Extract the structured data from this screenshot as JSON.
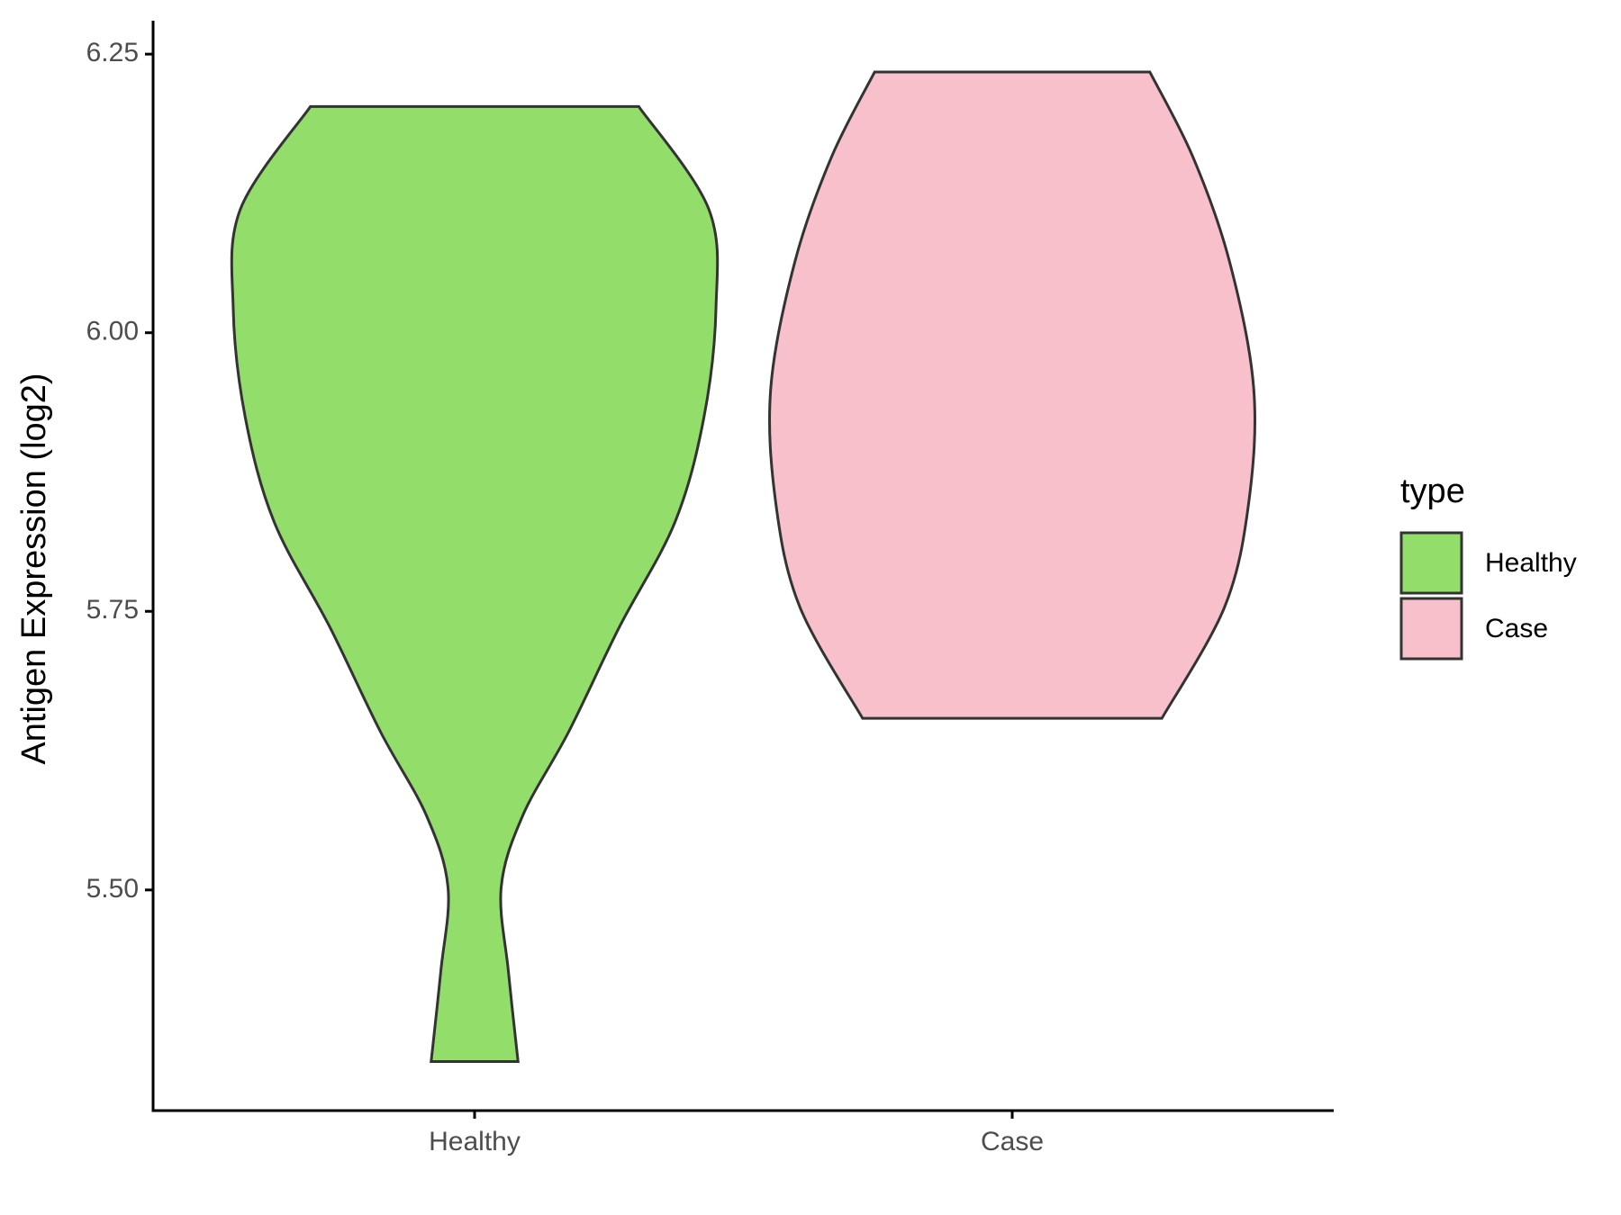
{
  "chart_data": {
    "type": "violin",
    "y_label": "Antigen Expression (log2)",
    "categories": [
      "Healthy",
      "Case"
    ],
    "series": [
      {
        "name": "Healthy",
        "color": "#93dd6a",
        "y": [
          5.346,
          5.427,
          5.502,
          5.567,
          5.642,
          5.736,
          5.83,
          5.924,
          6.022,
          6.111,
          6.203
        ],
        "density": [
          0.18,
          0.14,
          0.11,
          0.2,
          0.39,
          0.6,
          0.83,
          0.95,
          1.0,
          0.97,
          0.68
        ]
      },
      {
        "name": "Case",
        "color": "#f7c0cb",
        "y": [
          5.654,
          5.754,
          5.848,
          5.951,
          6.064,
          6.157,
          6.234
        ],
        "density": [
          0.62,
          0.88,
          0.98,
          1.0,
          0.9,
          0.75,
          0.57
        ]
      }
    ],
    "ylim": [
      5.302,
      6.28
    ],
    "yticks": [
      {
        "value": 5.5,
        "label": "5.50"
      },
      {
        "value": 5.75,
        "label": "5.75"
      },
      {
        "value": 6,
        "label": "6.00"
      },
      {
        "value": 6.25,
        "label": "6.25"
      }
    ],
    "legend": {
      "title": "type",
      "position": "right"
    }
  }
}
